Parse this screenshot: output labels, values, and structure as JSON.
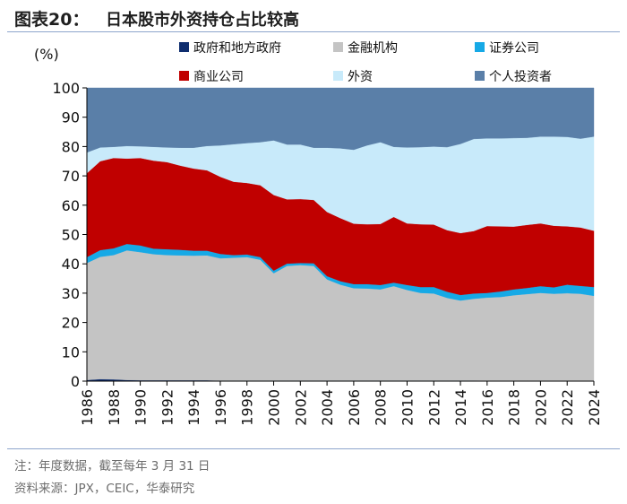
{
  "header": {
    "figure_label": "图表20：",
    "title": "日本股市外资持仓占比较高"
  },
  "footer": {
    "note": "注：年度数据，截至每年 3 月 31 日",
    "source": "资料来源：JPX，CEIC，华泰研究"
  },
  "legend": [
    {
      "name": "政府和地方政府",
      "color": "#0e2d6e"
    },
    {
      "name": "金融机构",
      "color": "#c4c4c4"
    },
    {
      "name": "证券公司",
      "color": "#16a9e6"
    },
    {
      "name": "商业公司",
      "color": "#c00000"
    },
    {
      "name": "外资",
      "color": "#c8eafa"
    },
    {
      "name": "个人投资者",
      "color": "#5a7fa8"
    }
  ],
  "chart_data": {
    "type": "area",
    "stacked": true,
    "ylabel": "(%)",
    "xlabel": "",
    "ylim": [
      0,
      100
    ],
    "yticks": [
      0,
      10,
      20,
      30,
      40,
      50,
      60,
      70,
      80,
      90,
      100
    ],
    "x": [
      1986,
      1987,
      1988,
      1989,
      1990,
      1991,
      1992,
      1993,
      1994,
      1995,
      1996,
      1997,
      1998,
      1999,
      2000,
      2001,
      2002,
      2003,
      2004,
      2005,
      2006,
      2007,
      2008,
      2009,
      2010,
      2011,
      2012,
      2013,
      2014,
      2015,
      2016,
      2017,
      2018,
      2019,
      2020,
      2021,
      2022,
      2023,
      2024
    ],
    "xticks": [
      1986,
      1988,
      1990,
      1992,
      1994,
      1996,
      1998,
      2000,
      2002,
      2004,
      2006,
      2008,
      2010,
      2012,
      2014,
      2016,
      2018,
      2020,
      2022,
      2024
    ],
    "series": [
      {
        "name": "政府和地方政府",
        "color": "#0e2d6e",
        "values": [
          0.4,
          0.7,
          0.6,
          0.4,
          0.3,
          0.3,
          0.3,
          0.3,
          0.3,
          0.3,
          0.2,
          0.2,
          0.2,
          0.2,
          0.2,
          0.2,
          0.2,
          0.2,
          0.2,
          0.2,
          0.2,
          0.2,
          0.2,
          0.2,
          0.2,
          0.2,
          0.2,
          0.2,
          0.2,
          0.2,
          0.1,
          0.1,
          0.1,
          0.1,
          0.1,
          0.1,
          0.1,
          0.1,
          0.1
        ]
      },
      {
        "name": "金融机构",
        "color": "#c4c4c4",
        "values": [
          39.9,
          41.7,
          42.4,
          44.2,
          43.7,
          43.0,
          42.7,
          42.6,
          42.5,
          42.6,
          41.7,
          41.9,
          42.1,
          41.2,
          36.6,
          39.1,
          39.4,
          39.1,
          34.5,
          32.7,
          31.5,
          31.4,
          31.1,
          32.2,
          30.9,
          29.9,
          29.7,
          28.2,
          27.3,
          27.9,
          28.4,
          28.6,
          29.2,
          29.6,
          30.0,
          29.7,
          29.9,
          29.7,
          29.0
        ]
      },
      {
        "name": "证券公司",
        "color": "#16a9e6",
        "values": [
          2.0,
          2.3,
          2.3,
          2.2,
          2.3,
          1.9,
          2.0,
          1.9,
          1.7,
          1.6,
          1.5,
          0.9,
          0.9,
          0.9,
          0.9,
          0.8,
          0.7,
          0.9,
          1.1,
          1.2,
          1.4,
          1.5,
          1.5,
          1.2,
          1.7,
          2.0,
          2.2,
          2.1,
          1.9,
          1.8,
          1.6,
          1.9,
          2.0,
          2.1,
          2.3,
          2.2,
          2.9,
          2.7,
          3.0
        ]
      },
      {
        "name": "商业公司",
        "color": "#c00000",
        "values": [
          28.6,
          30.3,
          30.8,
          29.1,
          29.8,
          30.0,
          29.7,
          28.7,
          28.0,
          27.4,
          26.3,
          25.0,
          24.4,
          24.5,
          25.8,
          21.9,
          21.8,
          21.6,
          21.9,
          21.5,
          20.6,
          20.4,
          20.8,
          22.4,
          21.0,
          21.4,
          21.3,
          21.0,
          21.1,
          21.3,
          22.8,
          22.2,
          21.4,
          21.5,
          21.4,
          21.0,
          19.9,
          19.9,
          19.2
        ]
      },
      {
        "name": "外资",
        "color": "#c8eafa",
        "values": [
          7.1,
          4.7,
          3.8,
          4.3,
          4.0,
          4.7,
          5.0,
          6.1,
          7.1,
          8.3,
          10.7,
          12.8,
          13.6,
          14.7,
          18.6,
          18.7,
          18.6,
          17.8,
          21.9,
          23.8,
          25.2,
          26.9,
          27.9,
          23.9,
          25.9,
          26.3,
          26.6,
          28.3,
          30.4,
          31.4,
          29.9,
          30.0,
          30.2,
          29.7,
          29.6,
          30.4,
          30.5,
          30.3,
          32.1
        ]
      },
      {
        "name": "个人投资者",
        "color": "#5a7fa8",
        "values": [
          22.0,
          20.3,
          20.1,
          19.8,
          19.9,
          20.1,
          20.3,
          20.4,
          20.4,
          19.8,
          19.6,
          19.2,
          18.8,
          18.5,
          17.9,
          19.3,
          19.3,
          20.4,
          20.4,
          20.6,
          21.1,
          19.6,
          18.5,
          20.1,
          20.3,
          20.2,
          20.0,
          20.2,
          19.1,
          17.4,
          17.2,
          17.2,
          17.1,
          17.0,
          16.6,
          16.6,
          16.7,
          17.3,
          16.6
        ]
      }
    ]
  }
}
